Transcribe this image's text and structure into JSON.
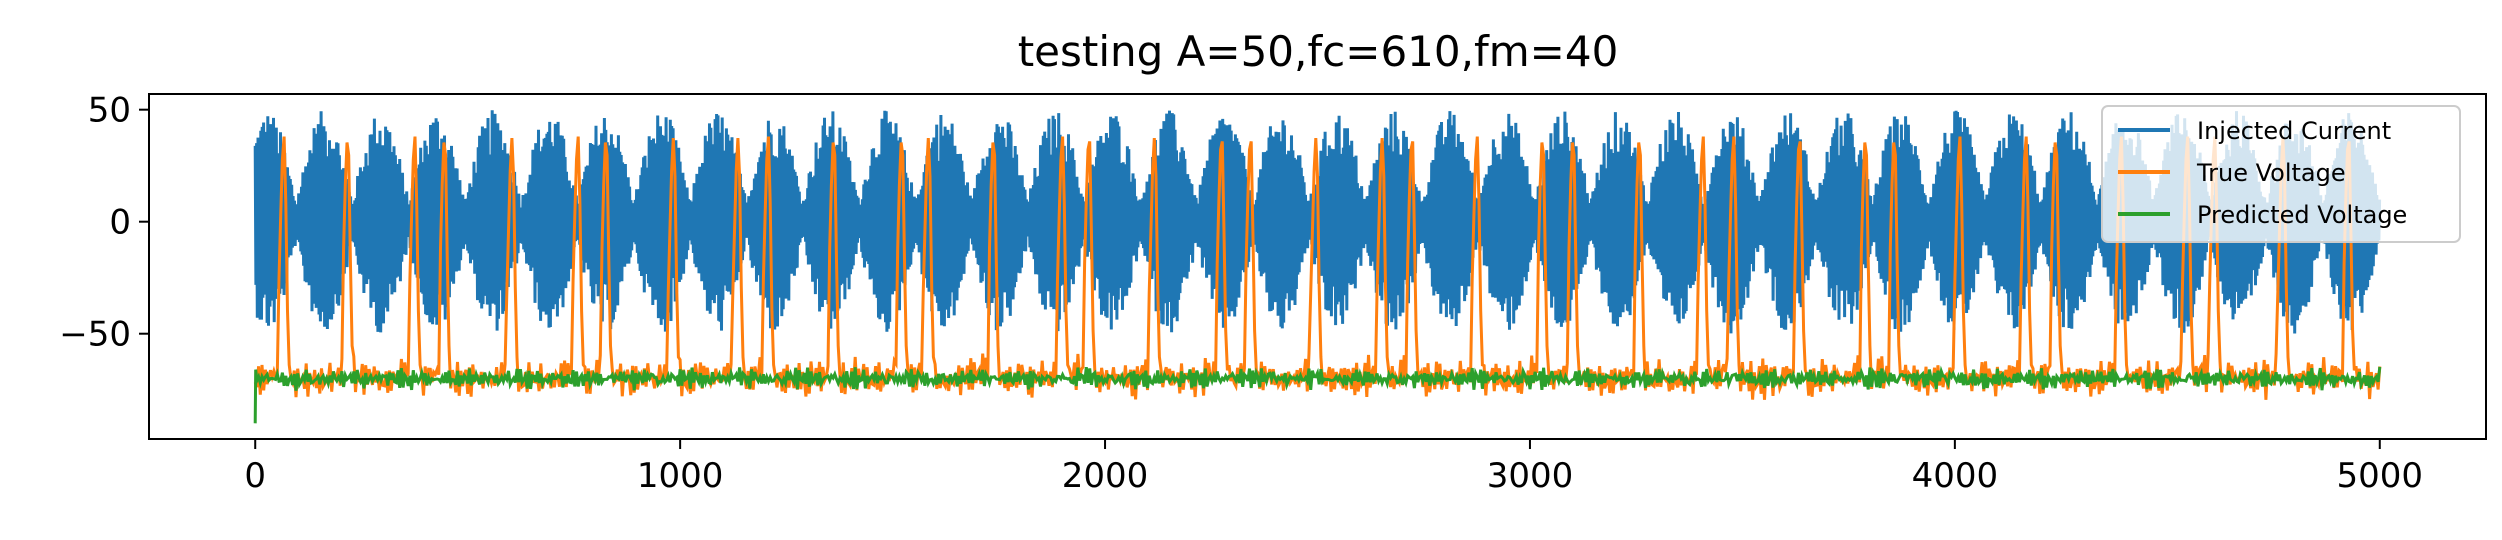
{
  "chart_data": {
    "type": "line",
    "title": "testing A=50,fc=610,fm=40",
    "xlabel": "",
    "ylabel": "",
    "xlim": [
      -250,
      5250
    ],
    "ylim": [
      -97,
      57
    ],
    "xticks": [
      0,
      1000,
      2000,
      3000,
      4000,
      5000
    ],
    "xtick_labels": [
      "0",
      "1000",
      "2000",
      "3000",
      "4000",
      "5000"
    ],
    "yticks": [
      50,
      0,
      -50
    ],
    "ytick_labels": [
      "50",
      "0",
      "−50"
    ],
    "grid": false,
    "legend_position": "top-right",
    "series": [
      {
        "name": "Injected Current",
        "color": "#1f77b4",
        "description": "amplitude-modulated carrier, envelope up to about ±50",
        "amplitude": 50,
        "x_range": [
          0,
          5000
        ],
        "envelope_peaks_x": [
          30,
          162,
          295,
          427,
          560,
          692,
          825,
          957,
          1090,
          1222,
          1355,
          1487,
          1620,
          1752,
          1885,
          2017,
          2150,
          2282,
          2415,
          2547,
          2680,
          2812,
          2945,
          3077,
          3210,
          3342,
          3475,
          3607,
          3740,
          3872,
          4005,
          4137,
          4270,
          4402,
          4535,
          4667,
          4800,
          4932
        ]
      },
      {
        "name": "True Voltage",
        "color": "#ff7f0e",
        "description": "baseline about -70 with oscillation, periodic spikes to about 38",
        "baseline": -70,
        "spike_peak": 38,
        "spike_x": [
          68,
          218,
          376,
          446,
          605,
          760,
          826,
          985,
          1137,
          1208,
          1362,
          1522,
          1585,
          1738,
          1900,
          1963,
          2117,
          2275,
          2343,
          2497,
          2653,
          2723,
          2876,
          3030,
          3102,
          3258,
          3408,
          3480,
          3635,
          3790,
          3858,
          4012,
          4168,
          4238,
          4392,
          4548,
          4612,
          4773,
          4927
        ]
      },
      {
        "name": "Predicted Voltage",
        "color": "#2ca02c",
        "description": "starts near -90 at x=0, then stays near -70 with small ripples",
        "start_value": -90,
        "baseline": -70
      }
    ]
  }
}
